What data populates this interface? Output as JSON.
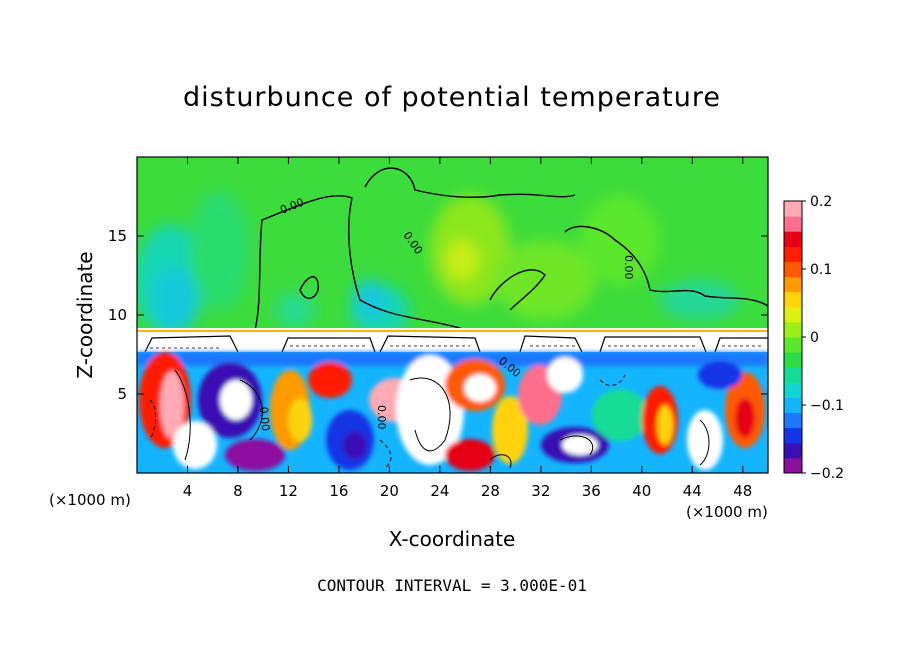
{
  "chart_data": {
    "type": "heatmap",
    "title": "disturbunce of potential temperature",
    "xlabel": "X-coordinate",
    "ylabel": "Z-coordinate",
    "x_unit_label": "(×1000 m)",
    "xlim": [
      0,
      50
    ],
    "ylim": [
      0,
      20
    ],
    "x_ticks": [
      "4",
      "8",
      "12",
      "16",
      "20",
      "24",
      "28",
      "32",
      "36",
      "40",
      "44",
      "48"
    ],
    "x_tick_values": [
      4,
      8,
      12,
      16,
      20,
      24,
      28,
      32,
      36,
      40,
      44,
      48
    ],
    "y_ticks": [
      "5",
      "10",
      "15"
    ],
    "y_tick_values": [
      5,
      10,
      15
    ],
    "colorbar": {
      "min": -0.2,
      "max": 0.2,
      "ticks": [
        "0.2",
        "0.1",
        "0",
        "−0.1",
        "−0.2"
      ],
      "tick_values": [
        0.2,
        0.1,
        0,
        -0.1,
        -0.2
      ],
      "colors": [
        "#8c0d9e",
        "#3a0fb4",
        "#1436e6",
        "#1e78ff",
        "#14b4ff",
        "#12d6d2",
        "#14dc96",
        "#2cdc46",
        "#5ae62a",
        "#9af018",
        "#dcf014",
        "#ffd20a",
        "#ff9a00",
        "#ff5a00",
        "#ff1e00",
        "#e60014",
        "#ff6e8c",
        "#ffaab4"
      ]
    },
    "contour_label": "0.00",
    "layers": [
      {
        "name": "upper",
        "z_range": [
          9,
          20
        ],
        "description_value": 0.0
      },
      {
        "name": "lower",
        "z_range": [
          0,
          8
        ],
        "value_range": [
          -0.2,
          0.2
        ]
      }
    ]
  },
  "footer": {
    "text": "CONTOUR INTERVAL = 3.000E-01"
  }
}
